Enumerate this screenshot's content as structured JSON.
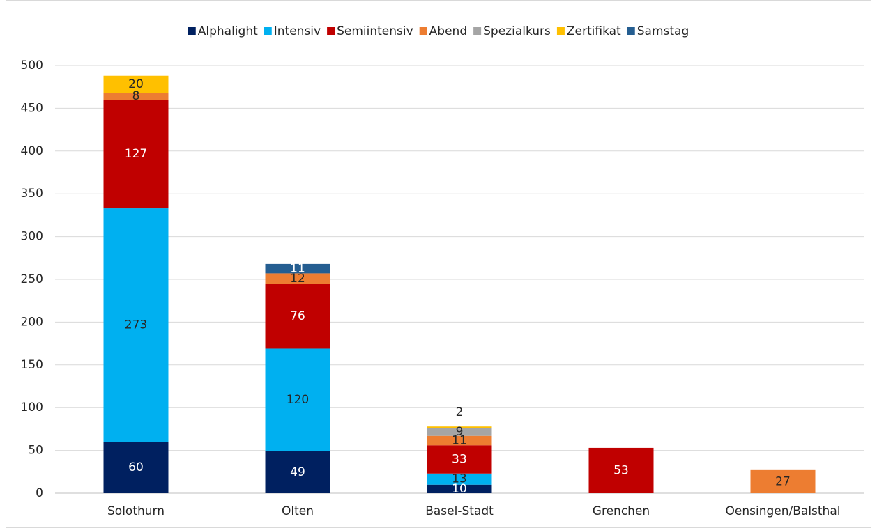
{
  "chart_data": {
    "type": "stacked_bar",
    "categories": [
      "Solothurn",
      "Olten",
      "Basel-Stadt",
      "Grenchen",
      "Oensingen/Balsthal"
    ],
    "series": [
      {
        "name": "Alphalight",
        "color": "#002060",
        "label_color": "#ffffff",
        "values": [
          60,
          49,
          10,
          null,
          null
        ]
      },
      {
        "name": "Intensiv",
        "color": "#00b0f0",
        "label_color": "#262626",
        "values": [
          273,
          120,
          13,
          null,
          null
        ]
      },
      {
        "name": "Semiintensiv",
        "color": "#c00000",
        "label_color": "#ffffff",
        "values": [
          127,
          76,
          33,
          53,
          null
        ]
      },
      {
        "name": "Abend",
        "color": "#ed7d31",
        "label_color": "#262626",
        "values": [
          8,
          12,
          11,
          null,
          27
        ]
      },
      {
        "name": "Spezialkurs",
        "color": "#a5a5a5",
        "label_color": "#262626",
        "values": [
          null,
          null,
          9,
          null,
          null
        ]
      },
      {
        "name": "Zertifikat",
        "color": "#ffc000",
        "label_color": "#262626",
        "values": [
          20,
          null,
          2,
          null,
          null
        ]
      },
      {
        "name": "Samstag",
        "color": "#255e91",
        "label_color": "#ffffff",
        "values": [
          null,
          11,
          null,
          null,
          null
        ]
      }
    ],
    "ylim": [
      0,
      500
    ],
    "yticks": [
      0,
      50,
      100,
      150,
      200,
      250,
      300,
      350,
      400,
      450,
      500
    ],
    "grid": true,
    "legend": "top"
  }
}
